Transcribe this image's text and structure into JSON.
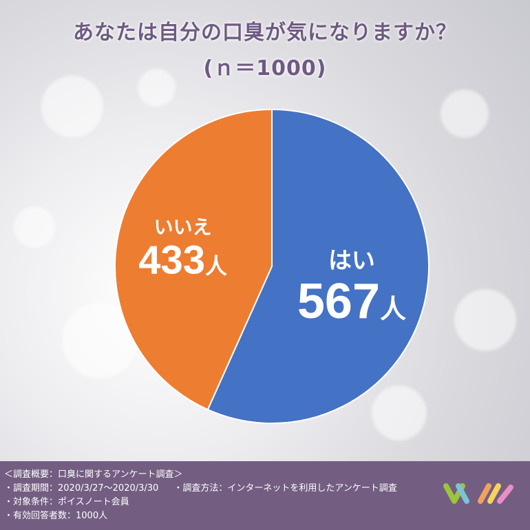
{
  "title_line1": "あなたは自分の口臭が気になりますか？",
  "title_line2": "(ｎ＝1000)",
  "colors": {
    "yes": "#4472c4",
    "no": "#ed7d31",
    "title": "#6f5a82",
    "footer": "#735e82"
  },
  "chart_data": {
    "type": "pie",
    "title": "あなたは自分の口臭が気になりますか？",
    "subtitle": "(ｎ＝1000)",
    "slices": [
      {
        "label": "はい",
        "value": 567,
        "unit": "人",
        "color": "#4472c4"
      },
      {
        "label": "いいえ",
        "value": 433,
        "unit": "人",
        "color": "#ed7d31"
      }
    ]
  },
  "footer": {
    "overview": "＜調査概要：口臭に関するアンケート調査＞",
    "period": "・調査期間：2020/3/27〜2020/3/30",
    "method": "・調査方法：インターネットを利用したアンケート調査",
    "target": "・対象条件：ポイスノート会員",
    "respondents": "・有効回答者数：1000人"
  }
}
